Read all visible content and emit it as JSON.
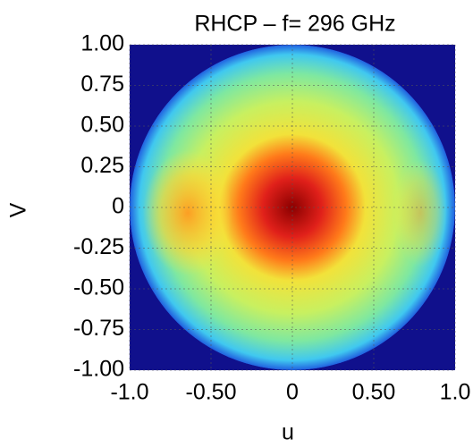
{
  "chart_data": {
    "type": "heatmap",
    "title": "RHCP – f= 296 GHz",
    "xlabel": "u",
    "ylabel": "V",
    "xlim": [
      -1,
      1
    ],
    "ylim": [
      -1,
      1
    ],
    "xticks": [
      {
        "value": -1,
        "label": "-1.0"
      },
      {
        "value": -0.5,
        "label": "-0.50"
      },
      0,
      {
        "value": 0.5,
        "label": "0.50"
      },
      {
        "value": 1,
        "label": "1.0"
      }
    ],
    "yticks": [
      {
        "value": 1,
        "label": "1.00"
      },
      0.75,
      {
        "value": 0.5,
        "label": "0.50"
      },
      0.25,
      0,
      -0.25,
      {
        "value": -0.5,
        "label": "-0.50"
      },
      -0.75,
      {
        "value": -1,
        "label": "-1.00"
      }
    ],
    "grid": true
  }
}
